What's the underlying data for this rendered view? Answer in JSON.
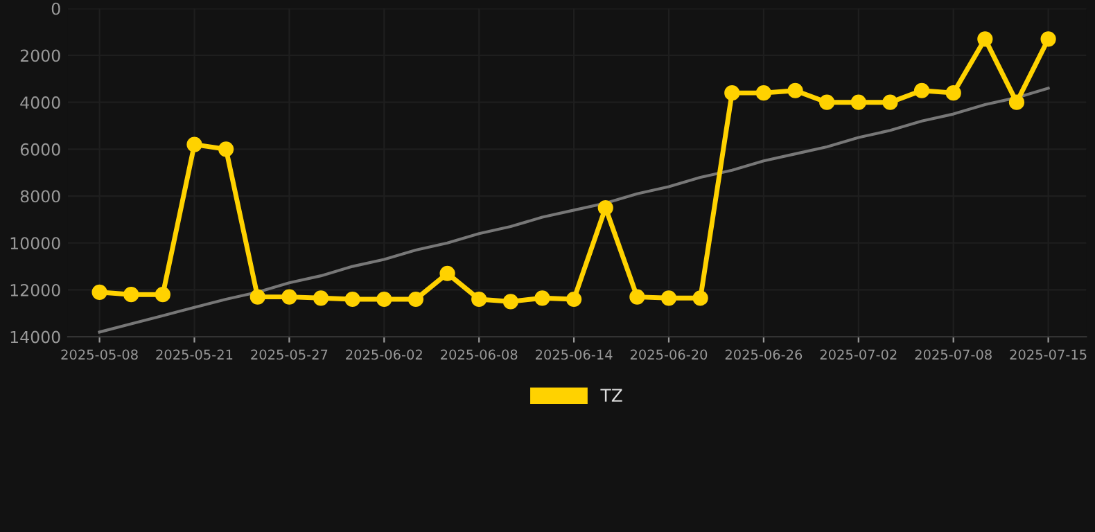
{
  "chart_data": {
    "type": "line",
    "categories": [
      "2025-05-08",
      null,
      null,
      "2025-05-21",
      null,
      null,
      "2025-05-27",
      null,
      null,
      "2025-06-02",
      null,
      null,
      "2025-06-08",
      null,
      null,
      "2025-06-14",
      null,
      null,
      "2025-06-20",
      null,
      null,
      "2025-06-26",
      null,
      null,
      "2025-07-02",
      null,
      null,
      "2025-07-08",
      null,
      null,
      "2025-07-15"
    ],
    "series": [
      {
        "name": "TZ",
        "color": "#ffd200",
        "marker": "circle",
        "values": [
          12100,
          12200,
          12200,
          5800,
          6000,
          12300,
          12300,
          12350,
          12400,
          12400,
          12400,
          11300,
          12400,
          12500,
          12350,
          12400,
          8500,
          12300,
          12350,
          12350,
          3600,
          3600,
          3500,
          4000,
          4000,
          4000,
          3500,
          3600,
          1300,
          4000,
          1300
        ]
      },
      {
        "type": "line",
        "color": "#777777",
        "marker": "none",
        "values": [
          13800,
          13450,
          13100,
          12750,
          12400,
          12100,
          11700,
          11400,
          11000,
          10700,
          10300,
          10000,
          9600,
          9300,
          8900,
          8600,
          8300,
          7900,
          7600,
          7200,
          6900,
          6500,
          6200,
          5900,
          5500,
          5200,
          4800,
          4500,
          4100,
          3800,
          3400
        ]
      }
    ],
    "ylim": [
      14000,
      0
    ],
    "yticks": [
      0,
      2000,
      4000,
      6000,
      8000,
      10000,
      12000,
      14000
    ],
    "grid": true,
    "legend": "bottom"
  }
}
